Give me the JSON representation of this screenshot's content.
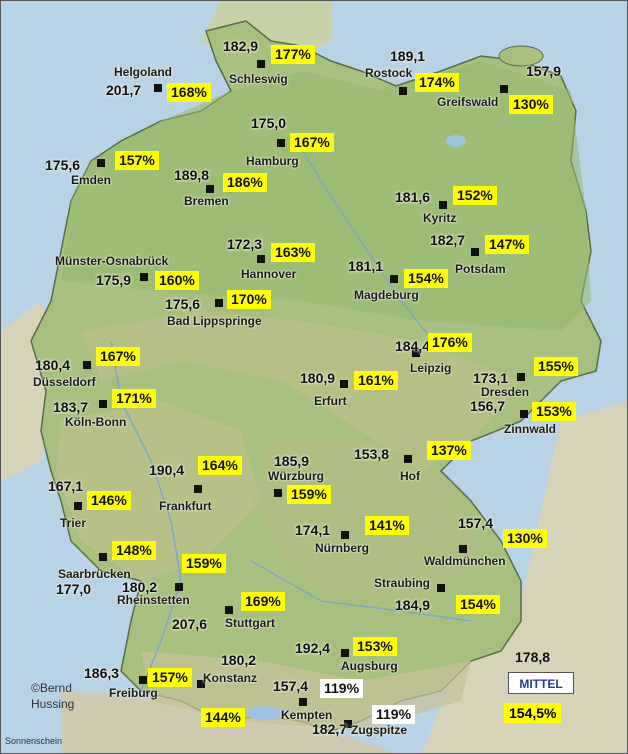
{
  "stations": [
    {
      "id": "schleswig",
      "name": "Schleswig",
      "value": "182,9",
      "pct": "177%"
    },
    {
      "id": "helgoland",
      "name": "Helgoland",
      "value": "201,7",
      "pct": "168%"
    },
    {
      "id": "rostock",
      "name": "Rostock",
      "value": "189,1",
      "pct": "174%"
    },
    {
      "id": "greifswald",
      "name": "Greifswald",
      "value": "157,9",
      "pct": "130%"
    },
    {
      "id": "hamburg",
      "name": "Hamburg",
      "value": "175,0",
      "pct": "167%"
    },
    {
      "id": "emden",
      "name": "Emden",
      "value": "175,6",
      "pct": "157%"
    },
    {
      "id": "bremen",
      "name": "Bremen",
      "value": "189,8",
      "pct": "186%"
    },
    {
      "id": "kyritz",
      "name": "Kyritz",
      "value": "181,6",
      "pct": "152%"
    },
    {
      "id": "potsdam",
      "name": "Potsdam",
      "value": "182,7",
      "pct": "147%"
    },
    {
      "id": "hannover",
      "name": "Hannover",
      "value": "172,3",
      "pct": "163%"
    },
    {
      "id": "muenster",
      "name": "Münster-Osnabrück",
      "value": "175,9",
      "pct": "160%"
    },
    {
      "id": "magdeburg",
      "name": "Magdeburg",
      "value": "181,1",
      "pct": "154%"
    },
    {
      "id": "badlippspringe",
      "name": "Bad Lippspringe",
      "value": "175,6",
      "pct": "170%"
    },
    {
      "id": "duesseldorf",
      "name": "Düsseldorf",
      "value": "180,4",
      "pct": "167%"
    },
    {
      "id": "leipzig",
      "name": "Leipzig",
      "value": "184,4",
      "pct": "176%"
    },
    {
      "id": "erfurt",
      "name": "Erfurt",
      "value": "180,9",
      "pct": "161%"
    },
    {
      "id": "dresden",
      "name": "Dresden",
      "value": "173,1",
      "pct": "155%"
    },
    {
      "id": "koelnbonn",
      "name": "Köln-Bonn",
      "value": "183,7",
      "pct": "171%"
    },
    {
      "id": "zinnwald",
      "name": "Zinnwald",
      "value": "156,7",
      "pct": "153%"
    },
    {
      "id": "hof",
      "name": "Hof",
      "value": "153,8",
      "pct": "137%"
    },
    {
      "id": "frankfurt",
      "name": "Frankfurt",
      "value": "190,4",
      "pct": "164%"
    },
    {
      "id": "wuerzburg",
      "name": "Würzburg",
      "value": "185,9",
      "pct": "159%"
    },
    {
      "id": "trier",
      "name": "Trier",
      "value": "167,1",
      "pct": "146%"
    },
    {
      "id": "nuernberg",
      "name": "Nürnberg",
      "value": "174,1",
      "pct": "141%"
    },
    {
      "id": "waldmuenchen",
      "name": "Waldmünchen",
      "value": "157,4",
      "pct": "130%"
    },
    {
      "id": "saarbruecken",
      "name": "Saarbrücken",
      "value": "177,0",
      "pct": "148%"
    },
    {
      "id": "rheinstetten",
      "name": "Rheinstetten",
      "value": "180,2",
      "pct": "159%"
    },
    {
      "id": "straubing",
      "name": "Straubing",
      "value": "184,9",
      "pct": "154%"
    },
    {
      "id": "stuttgart",
      "name": "Stuttgart",
      "value": "207,6",
      "pct": "169%"
    },
    {
      "id": "augsburg",
      "name": "Augsburg",
      "value": "192,4",
      "pct": "153%"
    },
    {
      "id": "freiburg",
      "name": "Freiburg",
      "value": "186,3",
      "pct": "157%"
    },
    {
      "id": "konstanz",
      "name": "Konstanz",
      "value": "180,2",
      "pct": "144%"
    },
    {
      "id": "kempten",
      "name": "Kempten",
      "value": "157,4",
      "pct": "119%"
    },
    {
      "id": "zugspitze",
      "name": "Zugspitze",
      "value": "182,7",
      "pct": "119%"
    }
  ],
  "legend": {
    "label": "MITTEL",
    "value": "178,8",
    "pct": "154,5%"
  },
  "credit": {
    "line1": "©Bernd",
    "line2": "Hussing"
  },
  "footer": "Sonnenschein",
  "colors": {
    "pct_box": "#ffff00",
    "pct_box_low": "#ffffff",
    "land": "#a7c080",
    "sea": "#b9d3e6",
    "legend_text": "#1f3f9f"
  }
}
